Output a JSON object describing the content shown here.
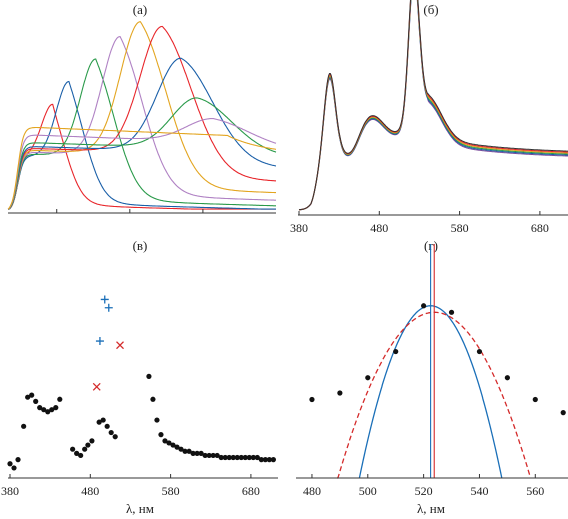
{
  "chart_data": [
    {
      "panel_label": "(а)",
      "type": "line",
      "x_range": [
        380,
        710
      ],
      "xticks": [
        440,
        530,
        620
      ],
      "tick_labels_shown": false,
      "grid": false,
      "series": [
        {
          "color": "#e8262b",
          "peak_x": 435,
          "peak_y": 0.56,
          "tail": 0.04,
          "plateau": 0.29
        },
        {
          "color": "#1a5fa8",
          "peak_x": 455,
          "peak_y": 0.68,
          "tail": 0.05,
          "plateau": 0.29
        },
        {
          "color": "#2a9a4a",
          "peak_x": 488,
          "peak_y": 0.8,
          "tail": 0.07,
          "plateau": 0.3
        },
        {
          "color": "#b082c4",
          "peak_x": 518,
          "peak_y": 0.92,
          "tail": 0.1,
          "plateau": 0.31
        },
        {
          "color": "#e3a520",
          "peak_x": 543,
          "peak_y": 1.0,
          "tail": 0.14,
          "plateau": 0.32
        },
        {
          "color": "#e8262b",
          "peak_x": 570,
          "peak_y": 0.98,
          "tail": 0.2,
          "plateau": 0.33
        },
        {
          "color": "#1a5fa8",
          "peak_x": 593,
          "peak_y": 0.82,
          "tail": 0.27,
          "plateau": 0.34
        },
        {
          "color": "#2a9a4a",
          "peak_x": 613,
          "peak_y": 0.62,
          "tail": 0.33,
          "plateau": 0.36
        },
        {
          "color": "#b082c4",
          "peak_x": 633,
          "peak_y": 0.52,
          "tail": 0.37,
          "plateau": 0.4
        },
        {
          "color": "#e3a520",
          "peak_x": 650,
          "peak_y": 0.44,
          "tail": 0.36,
          "plateau": 0.44
        }
      ]
    },
    {
      "panel_label": "(б)",
      "type": "line",
      "x_range": [
        380,
        715
      ],
      "xticks": [
        380,
        480,
        580,
        680
      ],
      "grid": false,
      "series_colors": [
        "#7a4a9a",
        "#1a5fa8",
        "#2a9a4a",
        "#e3a520",
        "#e8262b",
        "#333333"
      ]
    },
    {
      "panel_label": "(в)",
      "type": "scatter",
      "x_range": [
        380,
        710
      ],
      "xticks": [
        380,
        480,
        580,
        680
      ],
      "xlabel": "λ, нм",
      "y_range": [
        0,
        1
      ],
      "grid": false,
      "series": [
        {
          "marker": "dot",
          "color": "#111111",
          "points": [
            [
              380,
              0.03
            ],
            [
              385,
              0.01
            ],
            [
              390,
              0.05
            ],
            [
              397,
              0.21
            ],
            [
              402,
              0.35
            ],
            [
              407,
              0.36
            ],
            [
              412,
              0.33
            ],
            [
              417,
              0.3
            ],
            [
              422,
              0.29
            ],
            [
              427,
              0.28
            ],
            [
              432,
              0.29
            ],
            [
              437,
              0.3
            ],
            [
              442,
              0.34
            ],
            [
              458,
              0.1
            ],
            [
              463,
              0.08
            ],
            [
              468,
              0.07
            ],
            [
              473,
              0.1
            ],
            [
              477,
              0.12
            ],
            [
              482,
              0.14
            ],
            [
              491,
              0.23
            ],
            [
              496,
              0.24
            ],
            [
              501,
              0.21
            ],
            [
              506,
              0.18
            ],
            [
              511,
              0.16
            ],
            [
              553,
              0.45
            ],
            [
              558,
              0.34
            ],
            [
              563,
              0.24
            ],
            [
              568,
              0.17
            ],
            [
              573,
              0.14
            ],
            [
              578,
              0.13
            ],
            [
              583,
              0.12
            ],
            [
              588,
              0.11
            ],
            [
              593,
              0.1
            ],
            [
              598,
              0.09
            ],
            [
              603,
              0.09
            ],
            [
              608,
              0.08
            ],
            [
              613,
              0.08
            ],
            [
              618,
              0.08
            ],
            [
              623,
              0.07
            ],
            [
              628,
              0.07
            ],
            [
              633,
              0.07
            ],
            [
              638,
              0.07
            ],
            [
              643,
              0.06
            ],
            [
              648,
              0.06
            ],
            [
              653,
              0.06
            ],
            [
              658,
              0.06
            ],
            [
              663,
              0.06
            ],
            [
              668,
              0.06
            ],
            [
              673,
              0.06
            ],
            [
              678,
              0.06
            ],
            [
              683,
              0.06
            ],
            [
              688,
              0.06
            ],
            [
              693,
              0.05
            ],
            [
              698,
              0.05
            ],
            [
              703,
              0.05
            ],
            [
              708,
              0.05
            ]
          ]
        },
        {
          "marker": "plus",
          "color": "#1a6fb8",
          "points": [
            [
              492,
              0.62
            ],
            [
              498,
              0.82
            ],
            [
              503,
              0.78
            ]
          ]
        },
        {
          "marker": "cross",
          "color": "#d42a2a",
          "points": [
            [
              488,
              0.4
            ],
            [
              517,
              0.6
            ]
          ]
        }
      ]
    },
    {
      "panel_label": "(г)",
      "type": "scatter",
      "x_range": [
        475,
        571
      ],
      "xticks": [
        480,
        500,
        520,
        540,
        560
      ],
      "xlabel": "λ, нм",
      "y_range": [
        0,
        1
      ],
      "grid": false,
      "series": [
        {
          "marker": "dot",
          "color": "#111111",
          "points": [
            [
              480,
              0.36
            ],
            [
              490,
              0.39
            ],
            [
              500,
              0.46
            ],
            [
              510,
              0.58
            ],
            [
              520,
              0.79
            ],
            [
              530,
              0.76
            ],
            [
              540,
              0.58
            ],
            [
              550,
              0.46
            ],
            [
              560,
              0.36
            ],
            [
              570,
              0.3
            ]
          ]
        }
      ],
      "fits": [
        {
          "style": "solid",
          "color": "#1a6fb8",
          "vertex_x": 522.5,
          "vertex_y": 0.79,
          "zero_crossings": [
            497,
            548
          ]
        },
        {
          "style": "dashed",
          "color": "#d42a2a",
          "vertex_x": 523.8,
          "vertex_y": 0.76,
          "zero_crossings": [
            489,
            558
          ]
        }
      ],
      "vlines": [
        {
          "x": 522.5,
          "color": "#1a6fb8"
        },
        {
          "x": 523.8,
          "color": "#d42a2a"
        }
      ]
    }
  ]
}
